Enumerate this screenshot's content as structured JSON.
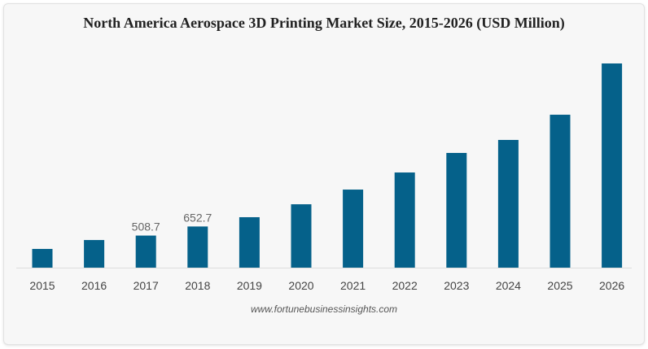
{
  "chart_data": {
    "type": "bar",
    "title": "North America Aerospace 3D Printing Market Size, 2015-2026 (USD Million)",
    "categories": [
      "2015",
      "2016",
      "2017",
      "2018",
      "2019",
      "2020",
      "2021",
      "2022",
      "2023",
      "2024",
      "2025",
      "2026"
    ],
    "values": [
      297,
      438,
      508.7,
      652.7,
      800,
      1005,
      1238,
      1509,
      1819,
      2025,
      2425,
      3238
    ],
    "data_labels": {
      "2017": "508.7",
      "2018": "652.7"
    },
    "xlabel": "",
    "ylabel": "",
    "ylim": [
      0,
      3300
    ],
    "grid": false,
    "bar_color": "#05618a",
    "source": "www.fortunebusinessinsights.com"
  }
}
